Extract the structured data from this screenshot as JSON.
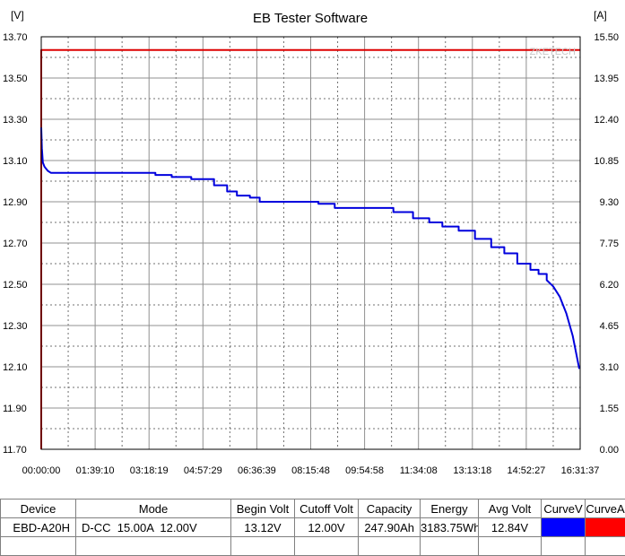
{
  "window_title": "EB Tester Software",
  "chart_data": {
    "type": "line",
    "title": "EB Tester Software",
    "left_unit": "[V]",
    "right_unit": "[A]",
    "watermark": "ZKETECH",
    "left_axis": {
      "min": 11.7,
      "max": 13.7,
      "ticks": [
        "13.70",
        "13.50",
        "13.30",
        "13.10",
        "12.90",
        "12.70",
        "12.50",
        "12.30",
        "12.10",
        "11.90",
        "11.70"
      ]
    },
    "right_axis": {
      "min": 0.0,
      "max": 15.5,
      "ticks": [
        "15.50",
        "13.95",
        "12.40",
        "10.85",
        "9.30",
        "7.75",
        "6.20",
        "4.65",
        "3.10",
        "1.55",
        "0.00"
      ]
    },
    "x_axis": {
      "ticks": [
        "00:00:00",
        "01:39:10",
        "03:18:19",
        "04:57:29",
        "06:36:39",
        "08:15:48",
        "09:54:58",
        "11:34:08",
        "13:13:18",
        "14:52:27",
        "16:31:37"
      ]
    },
    "grid": true,
    "series": [
      {
        "name": "CurveV",
        "axis": "left",
        "color": "#0000dd",
        "x_hours": [
          0,
          0.02,
          0.05,
          0.1,
          0.2,
          0.3,
          0.5,
          1,
          2,
          3,
          3.5,
          4.0,
          4.6,
          5.3,
          5.7,
          6.0,
          6.4,
          6.7,
          7.2,
          8.0,
          8.5,
          9.0,
          9.6,
          10.2,
          10.8,
          11.4,
          11.9,
          12.3,
          12.8,
          13.3,
          13.8,
          14.2,
          14.6,
          15.0,
          15.25,
          15.5,
          15.7,
          15.9,
          16.1,
          16.3,
          16.5
        ],
        "values": [
          13.26,
          13.16,
          13.09,
          13.07,
          13.05,
          13.04,
          13.04,
          13.04,
          13.04,
          13.04,
          13.03,
          13.02,
          13.01,
          12.98,
          12.95,
          12.93,
          12.92,
          12.9,
          12.9,
          12.9,
          12.89,
          12.87,
          12.87,
          12.87,
          12.85,
          12.82,
          12.8,
          12.78,
          12.76,
          12.72,
          12.68,
          12.65,
          12.6,
          12.57,
          12.55,
          12.52,
          12.49,
          12.44,
          12.36,
          12.25,
          12.09
        ]
      },
      {
        "name": "CurveA",
        "axis": "right",
        "color": "#dd0000",
        "x_hours": [
          0,
          0,
          16.53
        ],
        "values": [
          0,
          15.0,
          15.0
        ]
      }
    ]
  },
  "table": {
    "headers": [
      "Device",
      "Mode",
      "Begin Volt",
      "Cutoff Volt",
      "Capacity",
      "Energy",
      "Avg Volt",
      "CurveV",
      "CurveA"
    ],
    "row": {
      "device": "EBD-A20H",
      "mode": "D-CC  15.00A  12.00V",
      "begin_volt": "13.12V",
      "cutoff_volt": "12.00V",
      "capacity": "247.90Ah",
      "energy": "3183.75Wh",
      "avg_volt": "12.84V"
    },
    "swatch_colors": {
      "curve_v": "#0000ff",
      "curve_a": "#ff0000"
    }
  }
}
